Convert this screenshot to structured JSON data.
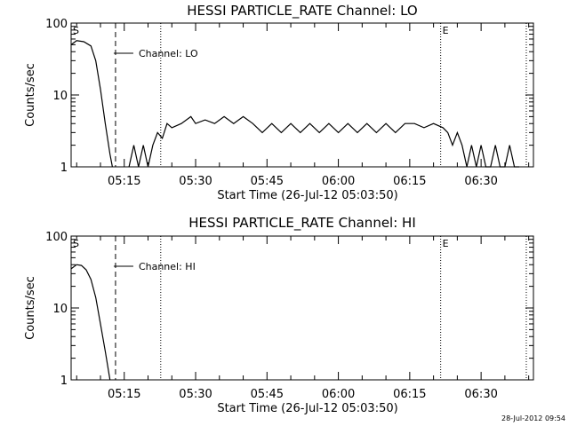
{
  "footer_timestamp": "28-Jul-2012 09:54",
  "chart_data": [
    {
      "type": "line",
      "title": "HESSI PARTICLE_RATE Channel: LO",
      "xlabel": "Start Time (26-Jul-12 05:03:50)",
      "ylabel": "Counts/sec",
      "y_scale": "log",
      "ylim": [
        1,
        100
      ],
      "y_ticks": [
        "1",
        "10",
        "100"
      ],
      "x_ticks": [
        "05:15",
        "05:30",
        "05:45",
        "06:00",
        "06:15",
        "06:30"
      ],
      "legend": "Channel: LO",
      "marker_start": "S",
      "marker_end": "E",
      "vlines_dotted": [
        "05:22:40",
        "06:21:30",
        "06:39:30"
      ],
      "vline_dashed": "05:13:10",
      "series": [
        {
          "x": [
            "05:03:50",
            "05:05:00",
            "05:06:30",
            "05:08:00",
            "05:09:00",
            "05:10:00",
            "05:11:00",
            "05:12:00",
            "05:12:30"
          ],
          "y": [
            50,
            57,
            55,
            48,
            30,
            12,
            4,
            1.5,
            1
          ]
        },
        {
          "x": [
            "05:16:00",
            "05:17:00",
            "05:18:00",
            "05:19:00",
            "05:20:00",
            "05:21:00",
            "05:22:00",
            "05:23:00",
            "05:24:00",
            "05:25:00",
            "05:27:00",
            "05:29:00",
            "05:30:00",
            "05:32:00",
            "05:34:00",
            "05:36:00",
            "05:38:00",
            "05:40:00",
            "05:42:00",
            "05:44:00",
            "05:46:00",
            "05:48:00",
            "05:50:00",
            "05:52:00",
            "05:54:00",
            "05:56:00",
            "05:58:00",
            "06:00:00",
            "06:02:00",
            "06:04:00",
            "06:06:00",
            "06:08:00",
            "06:10:00",
            "06:12:00",
            "06:14:00",
            "06:16:00",
            "06:18:00",
            "06:20:00",
            "06:22:00",
            "06:23:00",
            "06:24:00",
            "06:25:00",
            "06:26:00",
            "06:27:00",
            "06:28:00",
            "06:29:00",
            "06:30:00",
            "06:31:00",
            "06:32:00",
            "06:33:00",
            "06:34:00",
            "06:35:00",
            "06:36:00",
            "06:37:00",
            "06:38:00"
          ],
          "y": [
            1,
            2,
            1,
            2,
            1,
            2,
            3,
            2.5,
            4,
            3.5,
            4,
            5,
            4,
            4.5,
            4,
            5,
            4,
            5,
            4,
            3,
            4,
            3,
            4,
            3,
            4,
            3,
            4,
            3,
            4,
            3,
            4,
            3,
            4,
            3,
            4,
            4,
            3.5,
            4,
            3.5,
            3,
            2,
            3,
            2,
            1,
            2,
            1,
            2,
            1,
            1,
            2,
            1,
            1,
            2,
            1,
            1
          ]
        }
      ]
    },
    {
      "type": "line",
      "title": "HESSI PARTICLE_RATE Channel: HI",
      "xlabel": "Start Time (26-Jul-12 05:03:50)",
      "ylabel": "Counts/sec",
      "y_scale": "log",
      "ylim": [
        1,
        100
      ],
      "y_ticks": [
        "1",
        "10",
        "100"
      ],
      "x_ticks": [
        "05:15",
        "05:30",
        "05:45",
        "06:00",
        "06:15",
        "06:30"
      ],
      "legend": "Channel: HI",
      "marker_start": "S",
      "marker_end": "E",
      "vlines_dotted": [
        "05:22:40",
        "06:21:30",
        "06:39:30"
      ],
      "vline_dashed": "05:13:10",
      "series": [
        {
          "x": [
            "05:03:50",
            "05:05:00",
            "05:06:00",
            "05:07:00",
            "05:08:00",
            "05:09:00",
            "05:10:00",
            "05:11:00",
            "05:12:00"
          ],
          "y": [
            35,
            40,
            39,
            34,
            25,
            14,
            6,
            2.5,
            1
          ]
        }
      ]
    }
  ]
}
